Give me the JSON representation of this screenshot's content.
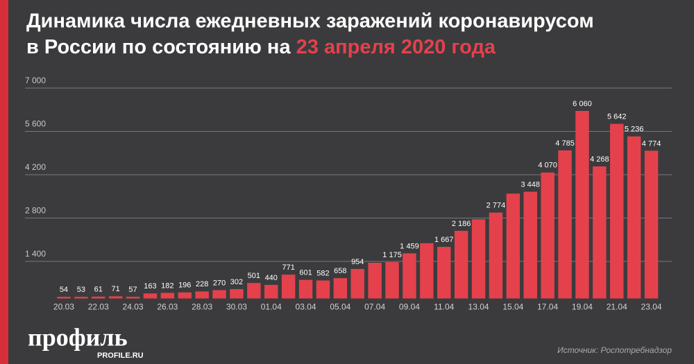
{
  "chart_data": {
    "type": "bar",
    "title_line1": "Динамика числа ежедневных заражений коронавирусом",
    "title_line2": "в России по состоянию на",
    "title_highlight": "23 апреля 2020 года",
    "source": "Источник: Роспотребнадзор",
    "logo": "профиль",
    "logo_site": "PROFILE.RU",
    "categories": [
      "20.03",
      null,
      "22.03",
      null,
      "24.03",
      null,
      "26.03",
      null,
      "28.03",
      null,
      "30.03",
      null,
      "01.04",
      null,
      "03.04",
      null,
      "05.04",
      null,
      "07.04",
      null,
      "09.04",
      null,
      "11.04",
      null,
      "13.04",
      null,
      "15.04",
      null,
      "17.04",
      null,
      "19.04",
      null,
      "21.04",
      null,
      "23.04"
    ],
    "values": [
      54,
      53,
      61,
      71,
      57,
      163,
      182,
      196,
      228,
      270,
      302,
      501,
      440,
      771,
      601,
      582,
      658,
      954,
      1154,
      1175,
      1459,
      1786,
      1667,
      2186,
      2558,
      2774,
      3388,
      3448,
      4070,
      4785,
      6060,
      4268,
      5642,
      5236,
      4774
    ],
    "value_labels": [
      "54",
      "53",
      "61",
      "71",
      "57",
      "163",
      "182",
      "196",
      "228",
      "270",
      "302",
      "501",
      "440",
      "771",
      "601",
      "582",
      "658",
      "954",
      null,
      "1 175",
      "1 459",
      null,
      "1 667",
      "2 186",
      null,
      "2 774",
      null,
      "3 448",
      "4 070",
      "4 785",
      "6 060",
      "4 268",
      "5 642",
      "5 236",
      "4 774"
    ],
    "color": "#e5414c",
    "ylim": [
      0,
      7000
    ],
    "yticks": [
      {
        "value": 1400,
        "label": "1 400"
      },
      {
        "value": 2800,
        "label": "2 800"
      },
      {
        "value": 4200,
        "label": "4 200"
      },
      {
        "value": 5600,
        "label": "5 600"
      },
      {
        "value": 7000,
        "label": "7 000"
      }
    ],
    "grid": true
  }
}
